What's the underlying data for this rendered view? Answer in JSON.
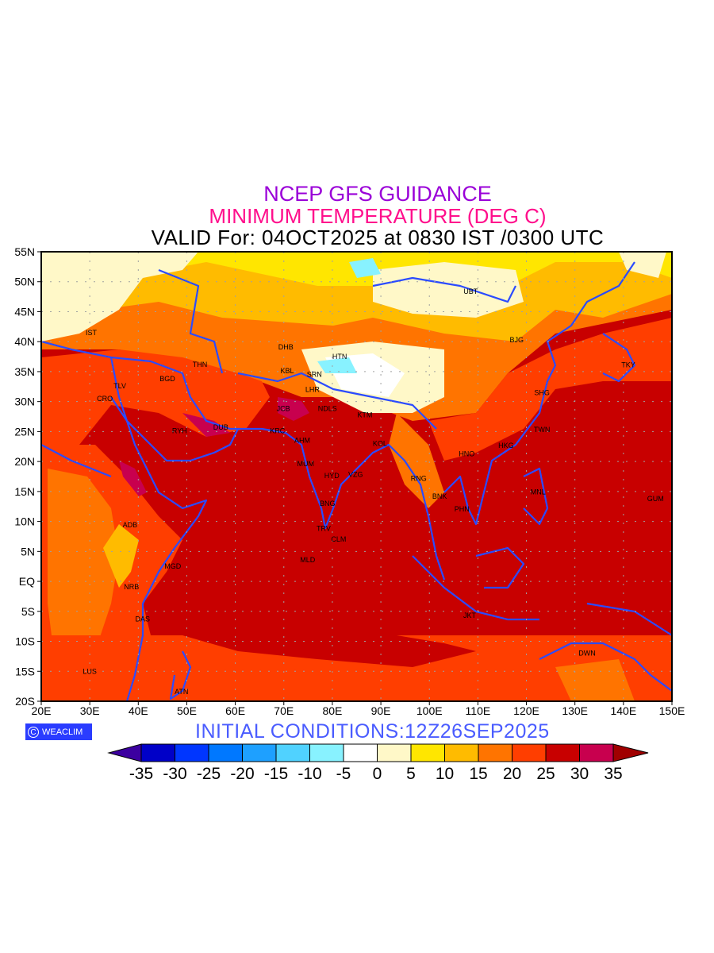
{
  "header": {
    "line1": "NCEP GFS GUIDANCE",
    "line2": "MINIMUM TEMPERATURE (DEG C)",
    "line3": "VALID For: 04OCT2025 at 0830 IST /0300 UTC",
    "line1_color": "#9a00d8",
    "line2_color": "#ff0f8c"
  },
  "footer": {
    "initial_conditions": "INITIAL CONDITIONS:12Z26SEP2025",
    "initial_color": "#4a5cff",
    "logo_text": "WEACLIM",
    "logo_symbol": "C",
    "logo_color": "#2a3cff"
  },
  "axes": {
    "lon_labels": [
      "20E",
      "30E",
      "40E",
      "50E",
      "60E",
      "70E",
      "80E",
      "90E",
      "100E",
      "110E",
      "120E",
      "130E",
      "140E",
      "150E"
    ],
    "lat_labels": [
      "55N",
      "50N",
      "45N",
      "40N",
      "35N",
      "30N",
      "25N",
      "20N",
      "15N",
      "10N",
      "5N",
      "EQ",
      "5S",
      "10S",
      "15S",
      "20S"
    ],
    "lon_range": [
      20,
      150
    ],
    "lat_range": [
      -20,
      55
    ]
  },
  "colorbar": {
    "labels": [
      "-35",
      "-30",
      "-25",
      "-20",
      "-15",
      "-10",
      "-5",
      "0",
      "5",
      "10",
      "15",
      "20",
      "25",
      "30",
      "35"
    ],
    "colors": [
      "#0000c8",
      "#0036ff",
      "#0078ff",
      "#1ea0ff",
      "#50d2ff",
      "#88f2ff",
      "#ffffff",
      "#fff8c8",
      "#ffe600",
      "#ffbb00",
      "#ff7400",
      "#ff3e00",
      "#c80000",
      "#c8004e"
    ],
    "low_color": "#3c00a0",
    "high_color": "#a00000"
  },
  "cities": [
    {
      "name": "IST",
      "lon": 30.3,
      "lat": 41.5
    },
    {
      "name": "THN",
      "lon": 52.7,
      "lat": 36.2
    },
    {
      "name": "BGD",
      "lon": 46.0,
      "lat": 33.8
    },
    {
      "name": "TLV",
      "lon": 36.2,
      "lat": 32.6
    },
    {
      "name": "CRO",
      "lon": 33.1,
      "lat": 30.5
    },
    {
      "name": "RYH",
      "lon": 48.5,
      "lat": 25.1
    },
    {
      "name": "DUB",
      "lon": 57.0,
      "lat": 25.7
    },
    {
      "name": "DHB",
      "lon": 70.4,
      "lat": 39.1
    },
    {
      "name": "HTN",
      "lon": 81.5,
      "lat": 37.5
    },
    {
      "name": "KBL",
      "lon": 70.7,
      "lat": 35.1
    },
    {
      "name": "SRN",
      "lon": 76.3,
      "lat": 34.5
    },
    {
      "name": "LHR",
      "lon": 75.9,
      "lat": 32.0
    },
    {
      "name": "JCB",
      "lon": 69.9,
      "lat": 28.8
    },
    {
      "name": "NDLS",
      "lon": 79.0,
      "lat": 28.8
    },
    {
      "name": "KTM",
      "lon": 86.7,
      "lat": 27.8
    },
    {
      "name": "KRC",
      "lon": 68.7,
      "lat": 25.1
    },
    {
      "name": "AHM",
      "lon": 73.8,
      "lat": 23.5
    },
    {
      "name": "KOL",
      "lon": 89.8,
      "lat": 23.0
    },
    {
      "name": "MUM",
      "lon": 74.5,
      "lat": 19.6
    },
    {
      "name": "HYD",
      "lon": 79.9,
      "lat": 17.6
    },
    {
      "name": "VZG",
      "lon": 84.8,
      "lat": 17.8
    },
    {
      "name": "RNG",
      "lon": 97.8,
      "lat": 17.2
    },
    {
      "name": "BNK",
      "lon": 102.1,
      "lat": 14.2
    },
    {
      "name": "PHN",
      "lon": 106.7,
      "lat": 12.1
    },
    {
      "name": "BNG",
      "lon": 79.0,
      "lat": 13.0
    },
    {
      "name": "TRV",
      "lon": 78.2,
      "lat": 8.8
    },
    {
      "name": "CLM",
      "lon": 81.3,
      "lat": 7.0
    },
    {
      "name": "MLD",
      "lon": 74.9,
      "lat": 3.6
    },
    {
      "name": "ADB",
      "lon": 38.3,
      "lat": 9.4
    },
    {
      "name": "MGD",
      "lon": 47.1,
      "lat": 2.5
    },
    {
      "name": "NRB",
      "lon": 38.6,
      "lat": -0.9
    },
    {
      "name": "DAS",
      "lon": 40.9,
      "lat": -6.3
    },
    {
      "name": "LUS",
      "lon": 30.0,
      "lat": -15.0
    },
    {
      "name": "ATN",
      "lon": 48.9,
      "lat": -18.4
    },
    {
      "name": "JKT",
      "lon": 108.3,
      "lat": -5.7
    },
    {
      "name": "DWN",
      "lon": 132.5,
      "lat": -12.0
    },
    {
      "name": "UBT",
      "lon": 108.5,
      "lat": 48.4
    },
    {
      "name": "BJG",
      "lon": 118.0,
      "lat": 40.3
    },
    {
      "name": "TKY",
      "lon": 141.0,
      "lat": 36.1
    },
    {
      "name": "SHG",
      "lon": 123.2,
      "lat": 31.5
    },
    {
      "name": "TWN",
      "lon": 123.2,
      "lat": 25.3
    },
    {
      "name": "HKG",
      "lon": 115.8,
      "lat": 22.7
    },
    {
      "name": "HNO",
      "lon": 107.7,
      "lat": 21.3
    },
    {
      "name": "MNL",
      "lon": 122.4,
      "lat": 14.9
    },
    {
      "name": "GUM",
      "lon": 146.6,
      "lat": 13.8
    }
  ]
}
